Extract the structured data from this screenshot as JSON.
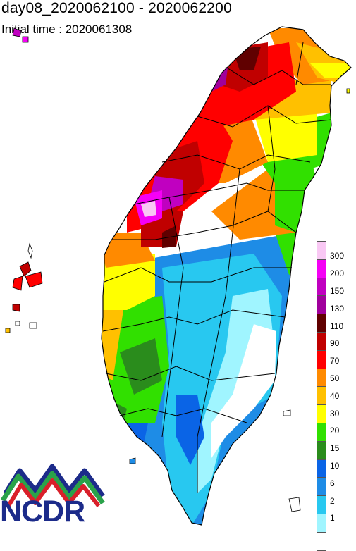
{
  "title": "day08_2020062100 - 2020062200",
  "subtitle": "Initial time : 2020061308",
  "logo_text": "NCDR",
  "legend": {
    "labels": [
      "300",
      "200",
      "150",
      "130",
      "110",
      "90",
      "70",
      "50",
      "40",
      "30",
      "20",
      "15",
      "10",
      "6",
      "2",
      "1"
    ],
    "colors": [
      "#f9c8f4",
      "#f500f5",
      "#c000c0",
      "#a0009c",
      "#600000",
      "#c00000",
      "#ff0000",
      "#ff8a00",
      "#ffc000",
      "#ffff00",
      "#31e000",
      "#2a8c1c",
      "#0a64e6",
      "#1e8ce6",
      "#28c8f0",
      "#a0f5ff",
      "#ffffff"
    ]
  },
  "colors": {
    "outline": "#000000",
    "logo_blue": "#1c2b8a",
    "logo_green": "#2aa24a",
    "logo_red": "#d9202a"
  }
}
